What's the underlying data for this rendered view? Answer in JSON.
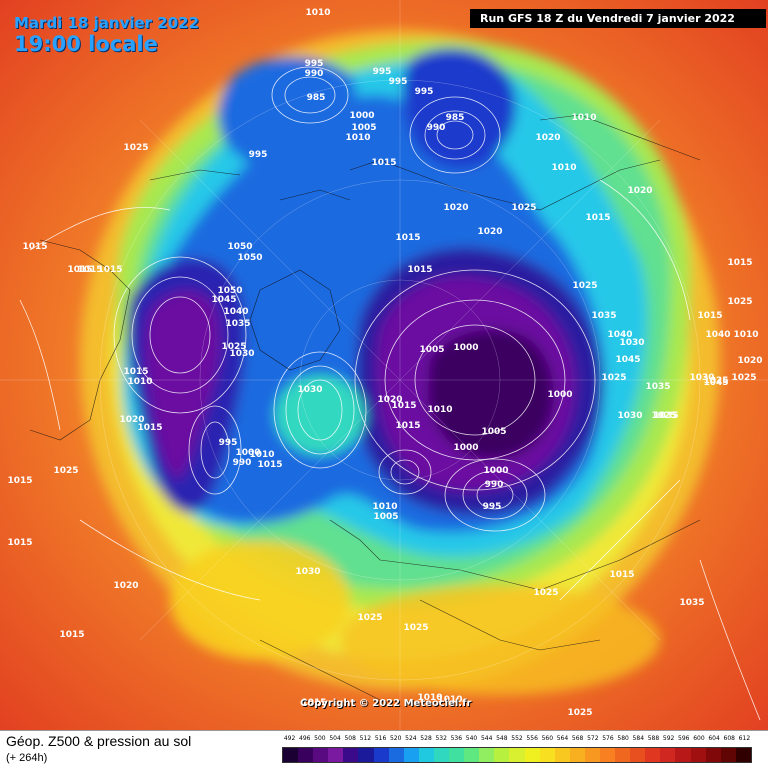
{
  "header": {
    "date": "Mardi 18 janvier 2022",
    "local_time": "19:00 locale",
    "run_info": "Run GFS 18 Z du Vendredi 7 janvier 2022"
  },
  "map": {
    "copyright": "Copyright © 2022 Meteociel.fr",
    "pressure_labels": [
      "1010",
      "995",
      "990",
      "995",
      "995",
      "985",
      "995",
      "985",
      "990",
      "1000",
      "1005",
      "1010",
      "995",
      "1015",
      "1020",
      "1020",
      "1020",
      "1010",
      "1010",
      "1025",
      "1025",
      "1020",
      "1015",
      "1015",
      "1050",
      "1050",
      "1015",
      "1015",
      "1015",
      "1015",
      "1015",
      "1015",
      "1025",
      "1050",
      "1045",
      "1040",
      "1035",
      "1025",
      "1030",
      "1005",
      "1000",
      "1025",
      "1015",
      "1010",
      "1020",
      "1025",
      "1030",
      "1035",
      "1040",
      "1045",
      "1015",
      "1010",
      "1020",
      "1015",
      "995",
      "1000",
      "990",
      "1015",
      "1010",
      "1005",
      "1000",
      "1000",
      "990",
      "995",
      "1025",
      "1035",
      "1035",
      "1025",
      "1010",
      "1005",
      "1000",
      "1030",
      "1030",
      "1020",
      "1015",
      "1015",
      "1025",
      "1025",
      "1015",
      "1015",
      "1030",
      "1025",
      "1015",
      "1020",
      "1015",
      "1025",
      "1025",
      "1010",
      "1010",
      "1015",
      "1035",
      "1030",
      "1040",
      "1045",
      "1025",
      "1010"
    ]
  },
  "footer": {
    "title": "Géop. Z500 & pression au sol",
    "subtitle": "(+ 264h)"
  },
  "scale": {
    "labels": [
      "492",
      "496",
      "500",
      "504",
      "508",
      "512",
      "516",
      "520",
      "524",
      "528",
      "532",
      "536",
      "540",
      "544",
      "548",
      "552",
      "556",
      "560",
      "564",
      "568",
      "572",
      "576",
      "580",
      "584",
      "588",
      "592",
      "596",
      "600",
      "604",
      "608",
      "612"
    ],
    "colors": [
      "#1a0033",
      "#3a005e",
      "#5a0a80",
      "#7a1aa0",
      "#3a0a8a",
      "#1a1a9a",
      "#1a3acc",
      "#1a6ae0",
      "#1aa0f0",
      "#20c8e0",
      "#30d8c0",
      "#40e0a0",
      "#60e880",
      "#90ee60",
      "#b8f040",
      "#d8f030",
      "#f0f020",
      "#f8e020",
      "#f8c820",
      "#f8b020",
      "#f89820",
      "#f88020",
      "#f06820",
      "#e85020",
      "#e03820",
      "#d02820",
      "#b81818",
      "#a01010",
      "#800808",
      "#600404",
      "#300000"
    ]
  }
}
